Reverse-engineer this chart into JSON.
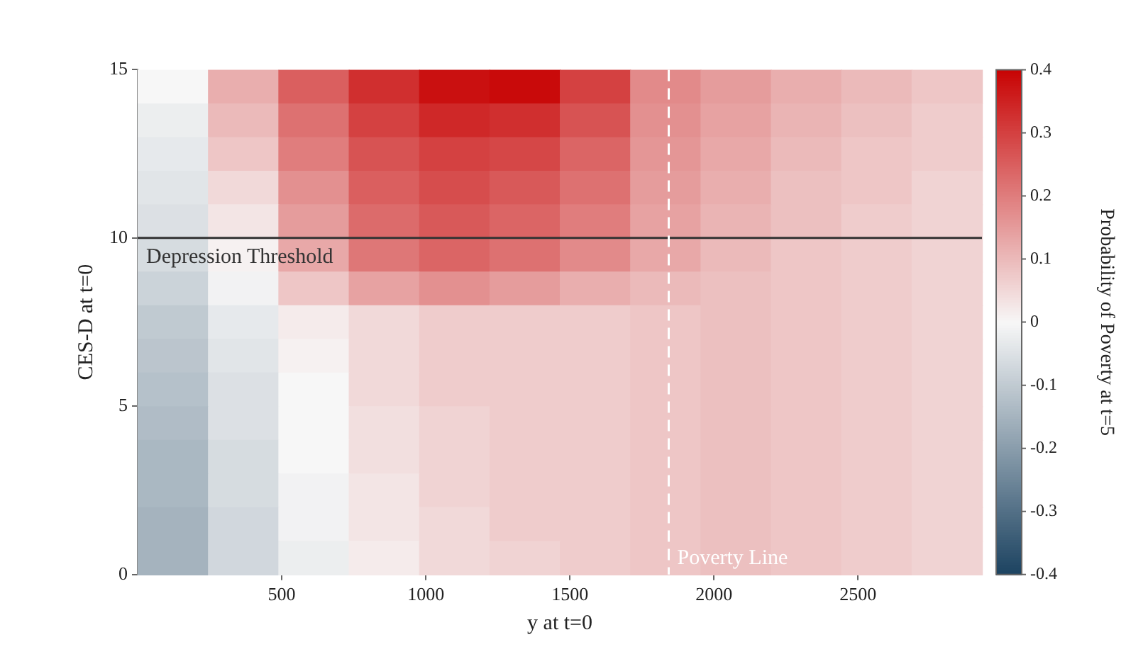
{
  "chart_data": {
    "type": "heatmap",
    "xlabel": "y at t=0",
    "ylabel": "CES-D at t=0",
    "clabel": "Probability of Poverty at t=5",
    "xlim": [
      0,
      2930
    ],
    "xticks": [
      500,
      1000,
      1500,
      2000,
      2500
    ],
    "ylim": [
      0,
      15
    ],
    "yticks": [
      0,
      5,
      10,
      15
    ],
    "clim": [
      -0.4,
      0.4
    ],
    "cticks": [
      -0.4,
      -0.3,
      -0.2,
      -0.1,
      0,
      0.1,
      0.2,
      0.3,
      0.4
    ],
    "cells": [
      [
        0.0,
        0.12,
        0.25,
        0.33,
        0.38,
        0.39,
        0.3,
        0.18,
        0.15,
        0.12,
        0.1,
        0.08
      ],
      [
        -0.02,
        0.1,
        0.22,
        0.3,
        0.34,
        0.33,
        0.27,
        0.17,
        0.14,
        0.11,
        0.09,
        0.07
      ],
      [
        -0.03,
        0.08,
        0.2,
        0.27,
        0.3,
        0.29,
        0.24,
        0.16,
        0.13,
        0.1,
        0.08,
        0.07
      ],
      [
        -0.04,
        0.05,
        0.17,
        0.25,
        0.28,
        0.26,
        0.22,
        0.15,
        0.12,
        0.09,
        0.08,
        0.06
      ],
      [
        -0.05,
        0.03,
        0.15,
        0.23,
        0.26,
        0.24,
        0.2,
        0.14,
        0.11,
        0.09,
        0.07,
        0.06
      ],
      [
        -0.06,
        0.01,
        0.13,
        0.21,
        0.24,
        0.22,
        0.18,
        0.13,
        0.1,
        0.08,
        0.07,
        0.06
      ],
      [
        -0.08,
        -0.01,
        0.08,
        0.14,
        0.17,
        0.15,
        0.12,
        0.1,
        0.09,
        0.08,
        0.07,
        0.06
      ],
      [
        -0.1,
        -0.03,
        0.02,
        0.05,
        0.07,
        0.07,
        0.07,
        0.08,
        0.09,
        0.08,
        0.07,
        0.06
      ],
      [
        -0.11,
        -0.04,
        0.01,
        0.05,
        0.07,
        0.07,
        0.07,
        0.08,
        0.09,
        0.08,
        0.07,
        0.06
      ],
      [
        -0.12,
        -0.05,
        0.0,
        0.05,
        0.07,
        0.07,
        0.07,
        0.08,
        0.09,
        0.08,
        0.07,
        0.06
      ],
      [
        -0.13,
        -0.05,
        0.0,
        0.04,
        0.06,
        0.07,
        0.07,
        0.08,
        0.09,
        0.08,
        0.07,
        0.06
      ],
      [
        -0.14,
        -0.06,
        0.0,
        0.04,
        0.06,
        0.07,
        0.07,
        0.08,
        0.09,
        0.08,
        0.07,
        0.06
      ],
      [
        -0.14,
        -0.06,
        -0.01,
        0.03,
        0.06,
        0.07,
        0.07,
        0.08,
        0.09,
        0.08,
        0.07,
        0.06
      ],
      [
        -0.15,
        -0.07,
        -0.01,
        0.03,
        0.05,
        0.07,
        0.07,
        0.08,
        0.09,
        0.08,
        0.07,
        0.06
      ],
      [
        -0.15,
        -0.07,
        -0.02,
        0.02,
        0.05,
        0.06,
        0.07,
        0.08,
        0.09,
        0.08,
        0.07,
        0.06
      ]
    ],
    "ref_lines": [
      {
        "axis": "y",
        "value": 10,
        "label": "Depression Threshold",
        "color": "#333333",
        "line_style": "solid"
      },
      {
        "axis": "x",
        "value": 1843,
        "label": "Poverty Line",
        "color": "#ffffff",
        "line_style": "dashed"
      }
    ]
  }
}
